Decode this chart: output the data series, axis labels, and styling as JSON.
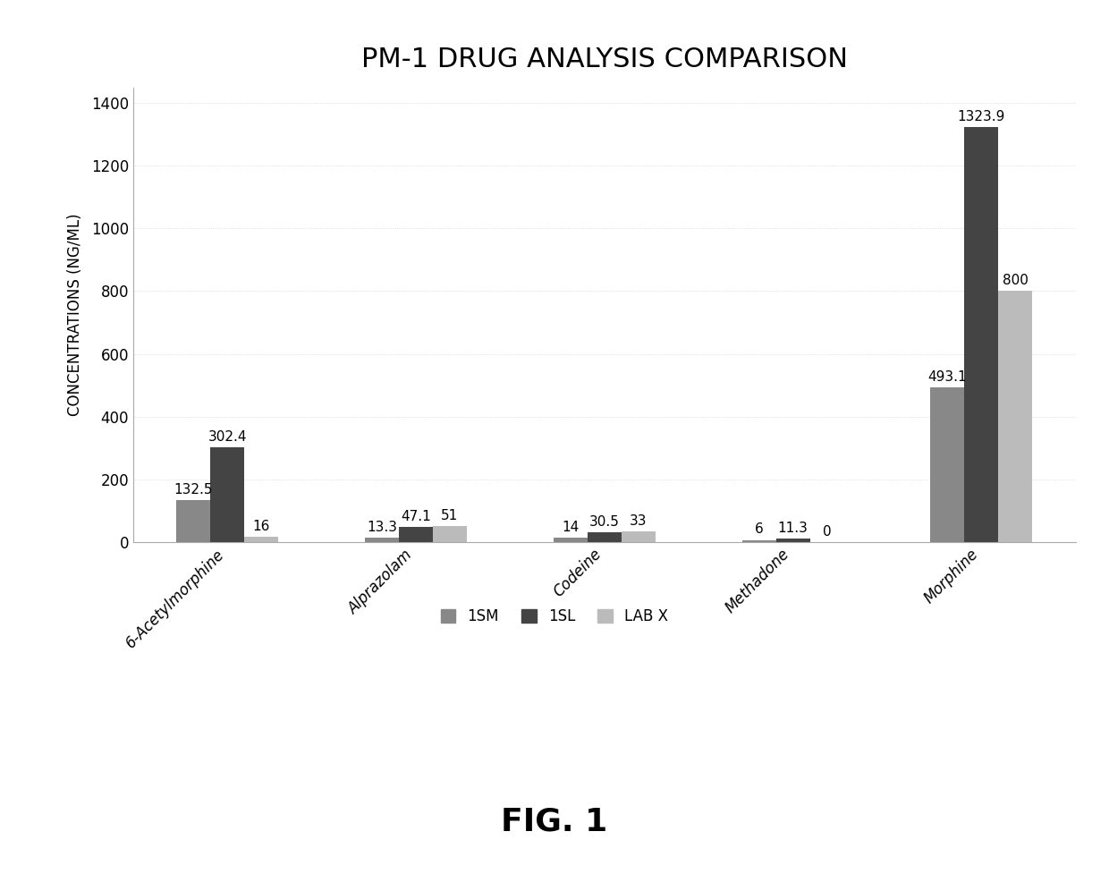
{
  "title": "PM-1 DRUG ANALYSIS COMPARISON",
  "ylabel": "CONCENTRATIONS (NG/ML)",
  "fig_label": "FIG. 1",
  "categories": [
    "6-Acetylmorphine",
    "Alprazolam",
    "Codeine",
    "Methadone",
    "Morphine"
  ],
  "series": {
    "1SM": [
      132.5,
      13.3,
      14.0,
      6.0,
      493.1
    ],
    "1SL": [
      302.4,
      47.1,
      30.5,
      11.3,
      1323.9
    ],
    "LAB X": [
      16,
      51,
      33,
      0,
      800
    ]
  },
  "colors": {
    "1SM": "#888888",
    "1SL": "#444444",
    "LAB X": "#bbbbbb"
  },
  "ylim": [
    0,
    1450
  ],
  "yticks": [
    0,
    200,
    400,
    600,
    800,
    1000,
    1200,
    1400
  ],
  "bar_width": 0.18,
  "background_color": "#ffffff",
  "title_fontsize": 22,
  "label_fontsize": 12,
  "tick_fontsize": 12,
  "annotation_fontsize": 11,
  "legend_fontsize": 12
}
